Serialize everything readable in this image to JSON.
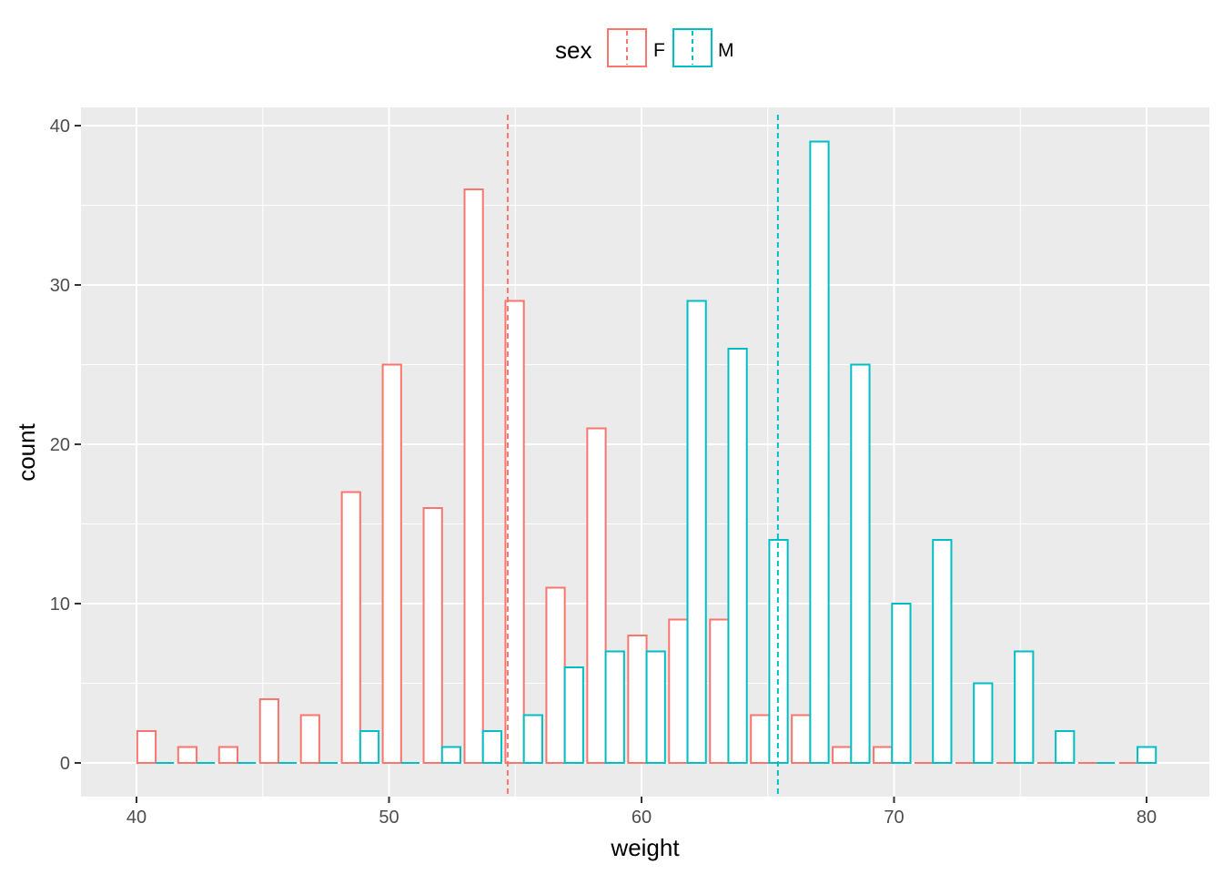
{
  "chart_data": {
    "type": "bar",
    "xlabel": "weight",
    "ylabel": "count",
    "xlim": [
      38,
      82
    ],
    "ylim": [
      -2,
      40.5
    ],
    "x_ticks": [
      40,
      50,
      60,
      70,
      80
    ],
    "x_tick_labels": [
      "40",
      "50",
      "60",
      "70",
      "80"
    ],
    "y_ticks": [
      0,
      10,
      20,
      30,
      40
    ],
    "y_tick_labels": [
      "0",
      "10",
      "20",
      "30",
      "40"
    ],
    "grid": true,
    "legend": {
      "title": "sex",
      "placement": "top",
      "entries": [
        "F",
        "M"
      ]
    },
    "bin_centers": [
      40.76,
      42.38,
      44.0,
      45.62,
      47.24,
      48.86,
      50.48,
      52.1,
      53.72,
      55.34,
      56.96,
      58.58,
      60.2,
      61.82,
      63.44,
      65.06,
      66.68,
      68.3,
      69.92,
      71.54,
      73.16,
      74.78,
      76.4,
      78.02,
      79.64
    ],
    "series": [
      {
        "name": "F",
        "color": "#F8766D",
        "values": [
          2,
          1,
          1,
          4,
          3,
          17,
          25,
          16,
          36,
          29,
          11,
          21,
          8,
          9,
          9,
          3,
          3,
          1,
          1,
          0,
          0,
          0,
          0,
          0,
          0
        ],
        "mean": 54.7
      },
      {
        "name": "M",
        "color": "#00BFC4",
        "values": [
          0,
          0,
          0,
          0,
          0,
          2,
          0,
          1,
          2,
          3,
          6,
          7,
          7,
          29,
          26,
          14,
          39,
          25,
          10,
          14,
          5,
          7,
          2,
          0,
          1
        ],
        "mean": 65.4
      }
    ]
  }
}
